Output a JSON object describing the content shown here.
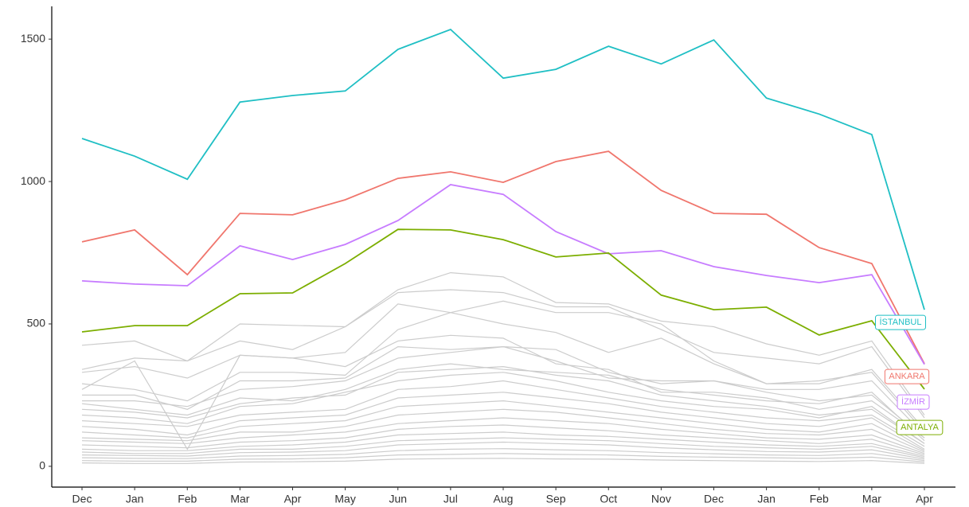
{
  "chart_data": {
    "type": "line",
    "categories": [
      "Dec",
      "Jan",
      "Feb",
      "Mar",
      "Apr",
      "May",
      "Jun",
      "Jul",
      "Aug",
      "Sep",
      "Oct",
      "Nov",
      "Dec",
      "Jan",
      "Feb",
      "Mar",
      "Apr"
    ],
    "ylim": [
      -73,
      1615
    ],
    "yticks": [
      0,
      500,
      1000,
      1500
    ],
    "grid": false,
    "series": [
      {
        "color": "#cccccc",
        "values": [
          425,
          440,
          370,
          440,
          410,
          490,
          620,
          680,
          665,
          575,
          570,
          510,
          490,
          430,
          390,
          440,
          180
        ]
      },
      {
        "color": "#cccccc",
        "values": [
          340,
          380,
          370,
          500,
          495,
          490,
          610,
          620,
          610,
          560,
          560,
          480,
          400,
          380,
          360,
          420,
          170
        ]
      },
      {
        "color": "#cccccc",
        "values": [
          330,
          350,
          310,
          390,
          380,
          400,
          570,
          540,
          500,
          470,
          400,
          450,
          360,
          290,
          290,
          340,
          130
        ]
      },
      {
        "color": "#cccccc",
        "values": [
          290,
          270,
          230,
          330,
          330,
          320,
          480,
          540,
          580,
          540,
          540,
          500,
          370,
          290,
          300,
          330,
          120
        ]
      },
      {
        "color": "#cccccc",
        "values": [
          270,
          370,
          60,
          390,
          380,
          350,
          440,
          460,
          450,
          360,
          340,
          260,
          260,
          240,
          200,
          230,
          100
        ]
      },
      {
        "color": "#cccccc",
        "values": [
          250,
          250,
          200,
          300,
          300,
          310,
          420,
          410,
          420,
          410,
          330,
          290,
          300,
          270,
          270,
          300,
          110
        ]
      },
      {
        "color": "#cccccc",
        "values": [
          230,
          230,
          210,
          270,
          280,
          300,
          380,
          400,
          420,
          370,
          310,
          300,
          300,
          260,
          230,
          250,
          100
        ]
      },
      {
        "color": "#cccccc",
        "values": [
          220,
          200,
          180,
          240,
          230,
          270,
          340,
          360,
          340,
          330,
          320,
          270,
          250,
          230,
          220,
          260,
          90
        ]
      },
      {
        "color": "#cccccc",
        "values": [
          200,
          190,
          170,
          220,
          240,
          250,
          330,
          340,
          350,
          320,
          300,
          250,
          230,
          210,
          180,
          200,
          80
        ]
      },
      {
        "color": "#cccccc",
        "values": [
          180,
          170,
          150,
          210,
          220,
          260,
          300,
          320,
          330,
          300,
          260,
          230,
          210,
          200,
          170,
          210,
          80
        ]
      },
      {
        "color": "#cccccc",
        "values": [
          160,
          150,
          140,
          180,
          190,
          200,
          270,
          280,
          300,
          270,
          240,
          210,
          190,
          170,
          160,
          180,
          70
        ]
      },
      {
        "color": "#cccccc",
        "values": [
          140,
          130,
          110,
          160,
          170,
          180,
          240,
          250,
          260,
          240,
          220,
          190,
          170,
          150,
          140,
          170,
          60
        ]
      },
      {
        "color": "#cccccc",
        "values": [
          120,
          110,
          100,
          140,
          150,
          160,
          210,
          220,
          230,
          210,
          190,
          170,
          150,
          130,
          120,
          150,
          55
        ]
      },
      {
        "color": "#cccccc",
        "values": [
          100,
          95,
          90,
          120,
          120,
          140,
          180,
          190,
          200,
          190,
          170,
          150,
          130,
          115,
          110,
          130,
          50
        ]
      },
      {
        "color": "#cccccc",
        "values": [
          90,
          85,
          80,
          100,
          110,
          120,
          150,
          160,
          170,
          160,
          150,
          130,
          115,
          100,
          95,
          110,
          45
        ]
      },
      {
        "color": "#cccccc",
        "values": [
          75,
          70,
          65,
          85,
          90,
          100,
          130,
          140,
          145,
          135,
          125,
          110,
          100,
          90,
          80,
          95,
          40
        ]
      },
      {
        "color": "#cccccc",
        "values": [
          60,
          55,
          55,
          70,
          75,
          85,
          110,
          115,
          120,
          110,
          105,
          95,
          85,
          75,
          70,
          80,
          35
        ]
      },
      {
        "color": "#cccccc",
        "values": [
          50,
          45,
          45,
          60,
          60,
          70,
          90,
          95,
          100,
          95,
          90,
          80,
          70,
          65,
          60,
          70,
          30
        ]
      },
      {
        "color": "#cccccc",
        "values": [
          40,
          38,
          36,
          48,
          50,
          55,
          75,
          80,
          85,
          80,
          75,
          65,
          58,
          52,
          50,
          58,
          25
        ]
      },
      {
        "color": "#cccccc",
        "values": [
          30,
          28,
          27,
          36,
          38,
          42,
          55,
          60,
          62,
          58,
          55,
          48,
          44,
          40,
          38,
          45,
          20
        ]
      },
      {
        "color": "#cccccc",
        "values": [
          20,
          18,
          18,
          25,
          26,
          30,
          40,
          42,
          45,
          42,
          40,
          35,
          32,
          30,
          28,
          32,
          15
        ]
      },
      {
        "color": "#cccccc",
        "values": [
          12,
          10,
          10,
          15,
          16,
          18,
          25,
          27,
          28,
          26,
          25,
          22,
          20,
          18,
          17,
          20,
          10
        ]
      },
      {
        "name": "İSTANBUL",
        "color": "#1fbfc4",
        "values": [
          1151,
          1089,
          1008,
          1279,
          1302,
          1318,
          1464,
          1534,
          1363,
          1394,
          1475,
          1413,
          1497,
          1293,
          1237,
          1165,
          550
        ]
      },
      {
        "name": "ANKARA",
        "color": "#f0766d",
        "values": [
          788,
          830,
          673,
          888,
          883,
          936,
          1011,
          1034,
          997,
          1070,
          1106,
          969,
          888,
          885,
          768,
          712,
          360
        ]
      },
      {
        "name": "İZMİR",
        "color": "#c77cff",
        "values": [
          651,
          640,
          634,
          774,
          726,
          779,
          863,
          989,
          955,
          824,
          746,
          757,
          701,
          670,
          645,
          673,
          358
        ]
      },
      {
        "name": "ANTALYA",
        "color": "#7cae00",
        "values": [
          472,
          494,
          494,
          606,
          609,
          712,
          832,
          830,
          796,
          735,
          749,
          601,
          550,
          559,
          461,
          511,
          271
        ]
      }
    ]
  }
}
